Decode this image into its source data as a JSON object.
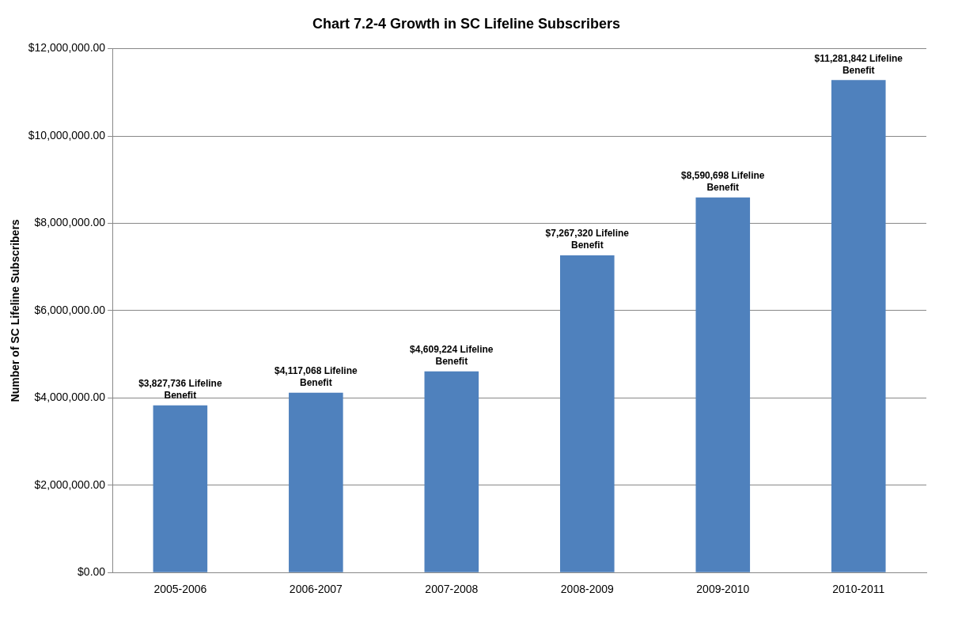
{
  "chart_data": {
    "type": "bar",
    "title": "Chart 7.2-4 Growth in SC Lifeline Subscribers",
    "ylabel": "Number of SC Lifeline Subscribers",
    "categories": [
      "2005-2006",
      "2006-2007",
      "2007-2008",
      "2008-2009",
      "2009-2010",
      "2010-2011"
    ],
    "values": [
      3827736,
      4117068,
      4609224,
      7267320,
      8590698,
      11281842
    ],
    "value_labels": [
      "$3,827,736 Lifeline Benefit",
      "$4,117,068 Lifeline Benefit",
      "$4,609,224 Lifeline Benefit",
      "$7,267,320 Lifeline Benefit",
      "$8,590,698 Lifeline Benefit",
      "$11,281,842 Lifeline Benefit"
    ],
    "color": "#4f81bd",
    "ylim": [
      0,
      12000000
    ],
    "yticks": [
      {
        "value": 0,
        "label": "$0.00"
      },
      {
        "value": 2000000,
        "label": "$2,000,000.00"
      },
      {
        "value": 4000000,
        "label": "$4,000,000.00"
      },
      {
        "value": 6000000,
        "label": "$6,000,000.00"
      },
      {
        "value": 8000000,
        "label": "$8,000,000.00"
      },
      {
        "value": 10000000,
        "label": "$10,000,000.00"
      },
      {
        "value": 12000000,
        "label": "$12,000,000.00"
      }
    ],
    "grid": "y",
    "legend": false
  }
}
